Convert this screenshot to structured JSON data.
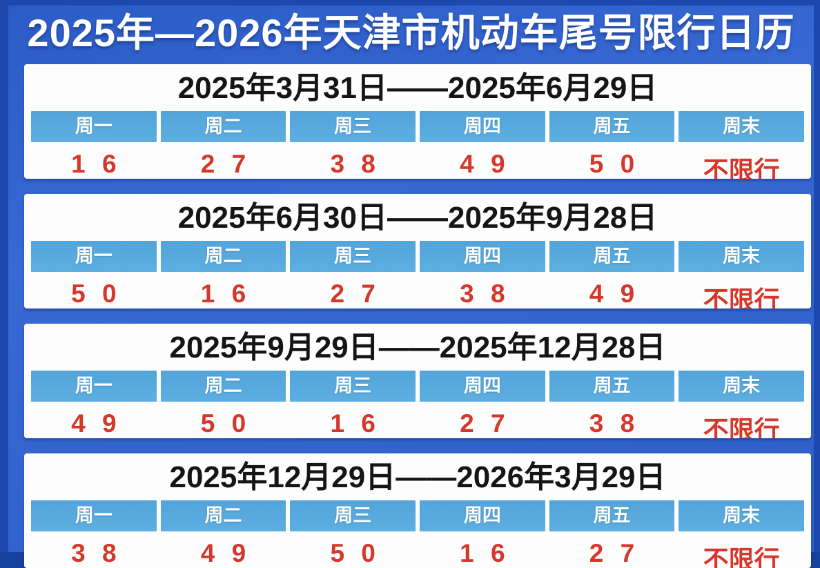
{
  "page": {
    "title": "2025年—2026年天津市机动车尾号限行日历"
  },
  "colors": {
    "background_blue": "#3365cf",
    "frame_blue": "#1d49ae",
    "card_background": "#fdfdfd",
    "weekday_cell_blue": "#57a8dd",
    "weekday_text": "#ffffff",
    "restricted_number_red": "#d5372a",
    "range_text": "#151515",
    "title_text": "#ffffff"
  },
  "weekday_headers": [
    "周一",
    "周二",
    "周三",
    "周四",
    "周五",
    "周末"
  ],
  "periods": [
    {
      "range": "2025年3月31日——2025年6月29日",
      "values": [
        "1 6",
        "2 7",
        "3 8",
        "4 9",
        "5 0",
        "不限行"
      ]
    },
    {
      "range": "2025年6月30日——2025年9月28日",
      "values": [
        "5 0",
        "1 6",
        "2 7",
        "3 8",
        "4 9",
        "不限行"
      ]
    },
    {
      "range": "2025年9月29日——2025年12月28日",
      "values": [
        "4 9",
        "5 0",
        "1 6",
        "2 7",
        "3 8",
        "不限行"
      ]
    },
    {
      "range": "2025年12月29日——2026年3月29日",
      "values": [
        "3 8",
        "4 9",
        "5 0",
        "1 6",
        "2 7",
        "不限行"
      ]
    }
  ]
}
